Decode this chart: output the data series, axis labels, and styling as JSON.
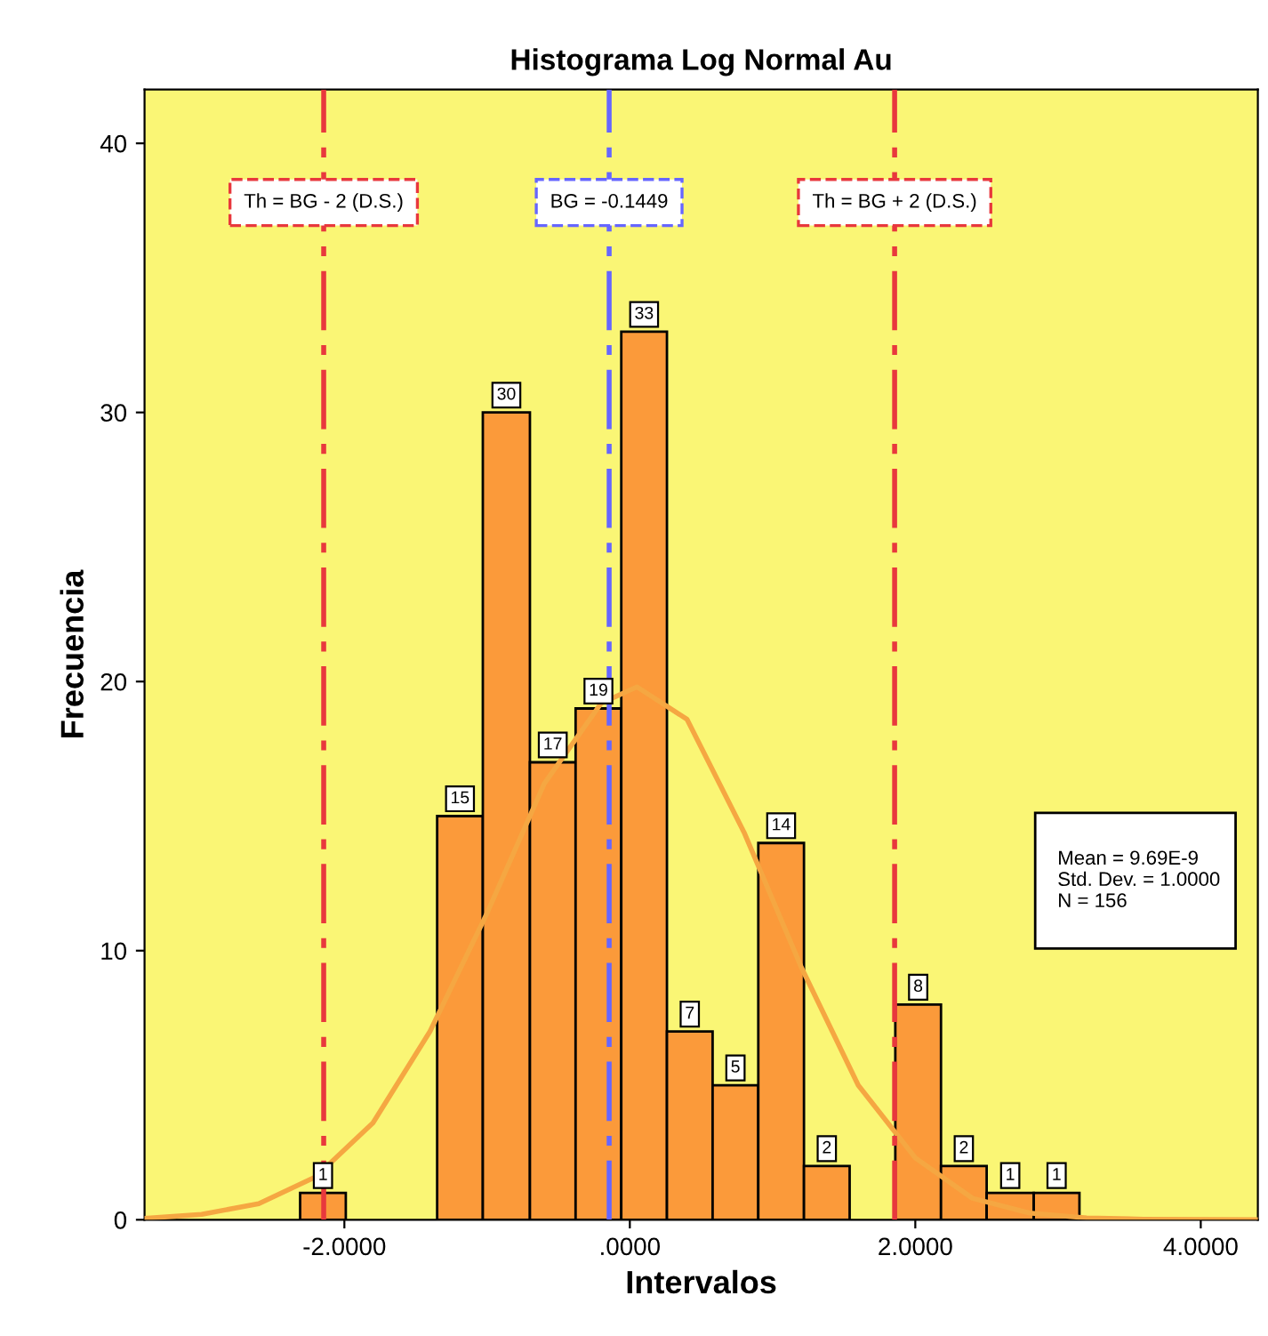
{
  "chart_data": {
    "type": "histogram",
    "title": "Histograma Log Normal Au",
    "xlabel": "Intervalos",
    "ylabel": "Frecuencia",
    "bins": [
      -2.31,
      -1.99,
      -1.35,
      -1.03,
      -0.7,
      -0.38,
      -0.06,
      0.26,
      0.58,
      0.9,
      1.22,
      1.54,
      1.86,
      2.18,
      2.5,
      2.83,
      3.15
    ],
    "values": [
      1,
      0,
      15,
      30,
      17,
      19,
      33,
      7,
      5,
      14,
      2,
      0,
      8,
      2,
      1,
      1
    ],
    "value_labels": [
      "1",
      null,
      "15",
      "30",
      "17",
      "19",
      "33",
      "7",
      "5",
      "14",
      "2",
      null,
      "8",
      "2",
      "1",
      "1"
    ],
    "color": "#fb9a3a",
    "series": [
      {
        "type": "line",
        "color": "#f5a742",
        "x": [
          -3.4,
          -3.0,
          -2.6,
          -2.2,
          -1.8,
          -1.4,
          -1.0,
          -0.6,
          -0.2,
          0.05,
          0.4,
          0.8,
          1.2,
          1.6,
          2.0,
          2.4,
          2.8,
          3.2,
          3.6,
          4.4
        ],
        "values": [
          0.05,
          0.2,
          0.6,
          1.6,
          3.6,
          7.0,
          11.4,
          16.2,
          19.2,
          19.8,
          18.6,
          14.4,
          9.4,
          5.0,
          2.3,
          0.8,
          0.25,
          0.07,
          0.02,
          0
        ]
      }
    ],
    "ref_lines": [
      {
        "axis": "x",
        "value": -2.1449,
        "label": "Th = BG - 2 (D.S.)",
        "color": "#e8383d",
        "line_style": "dashed"
      },
      {
        "axis": "x",
        "value": -0.1449,
        "label": "BG = -0.1449",
        "color": "#6666ff",
        "line_style": "dashed"
      },
      {
        "axis": "x",
        "value": 1.8551,
        "label": "Th = BG + 2 (D.S.)",
        "color": "#e8383d",
        "line_style": "dashed"
      }
    ],
    "annotations": [
      "Mean = 9.69E-9\nStd. Dev. = 1.0000\nN = 156"
    ],
    "xlim": [
      -3.4,
      4.4
    ],
    "ylim": [
      0,
      42
    ],
    "xticks": [
      {
        "value": -2,
        "label": "-2.0000"
      },
      {
        "value": 0,
        "label": ".0000"
      },
      {
        "value": 2,
        "label": "2.0000"
      },
      {
        "value": 4,
        "label": "4.0000"
      }
    ],
    "yticks": [
      0,
      10,
      20,
      30,
      40
    ],
    "grid": false,
    "legend": false
  }
}
